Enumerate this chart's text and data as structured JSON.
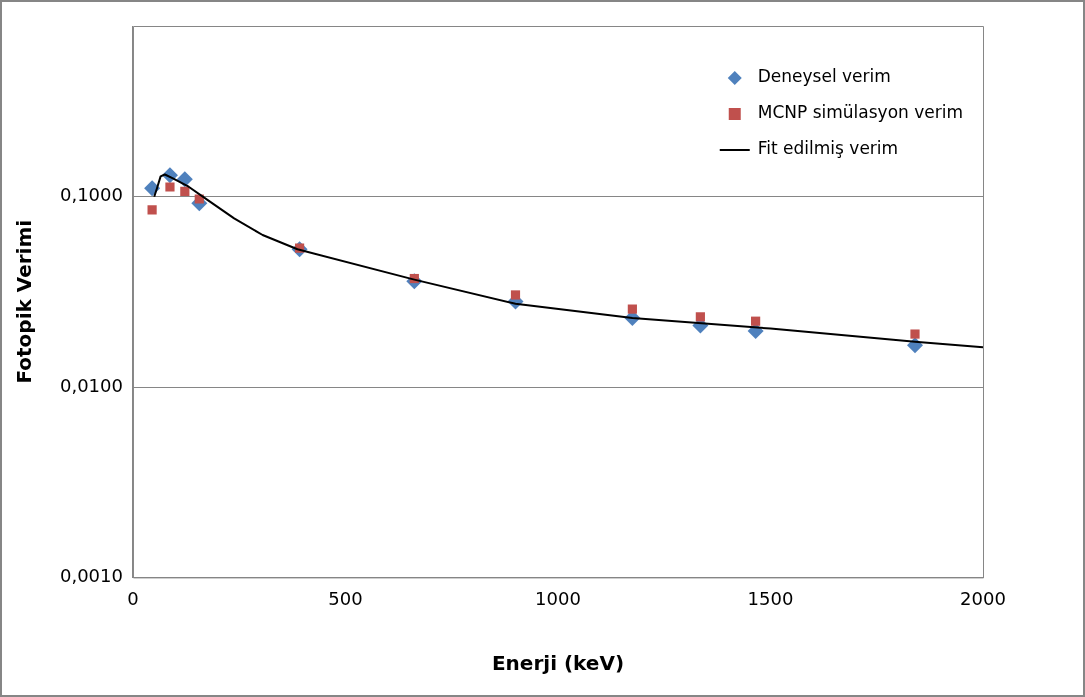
{
  "chart_data": {
    "type": "scatter",
    "xlabel": "Enerji (keV)",
    "ylabel": "Fotopik Verimi",
    "xlim": [
      0,
      2000
    ],
    "xticks": [
      0,
      500,
      1000,
      1500,
      2000
    ],
    "ylim": [
      0.001,
      0.79
    ],
    "yticks": [
      {
        "value": 0.001,
        "label": "0,0010"
      },
      {
        "value": 0.01,
        "label": "0,0100"
      },
      {
        "value": 0.1,
        "label": "0,1000"
      }
    ],
    "log": "y",
    "grid": "y",
    "legend": "top right",
    "series": [
      {
        "name": "Deneysel verim",
        "color": "#4f81bd",
        "marker": "diamond",
        "x": [
          45,
          87,
          122,
          156,
          392,
          662,
          900,
          1175,
          1335,
          1465,
          1840
        ],
        "values": [
          0.111,
          0.13,
          0.1235,
          0.0924,
          0.053,
          0.036,
          0.0282,
          0.0231,
          0.0211,
          0.0197,
          0.0166
        ]
      },
      {
        "name": "MCNP simülasyon verim",
        "color": "#c0504d",
        "marker": "square",
        "x": [
          45,
          87,
          122,
          156,
          392,
          662,
          900,
          1175,
          1335,
          1465,
          1840
        ],
        "values": [
          0.0854,
          0.1126,
          0.1068,
          0.0974,
          0.0538,
          0.0372,
          0.0305,
          0.0257,
          0.0234,
          0.0222,
          0.019
        ]
      },
      {
        "name": "Fit edilmiş verim",
        "type": "line",
        "color": "#000000",
        "marker": "none",
        "line_style": "solid",
        "x": [
          50,
          57,
          65,
          75,
          94,
          131,
          176,
          238,
          305,
          387,
          662,
          900,
          1175,
          1500,
          1840,
          2000
        ],
        "values": [
          0.1,
          0.112,
          0.128,
          0.131,
          0.125,
          0.113,
          0.096,
          0.077,
          0.063,
          0.053,
          0.0367,
          0.0274,
          0.0231,
          0.0203,
          0.0173,
          0.0162
        ]
      }
    ]
  }
}
